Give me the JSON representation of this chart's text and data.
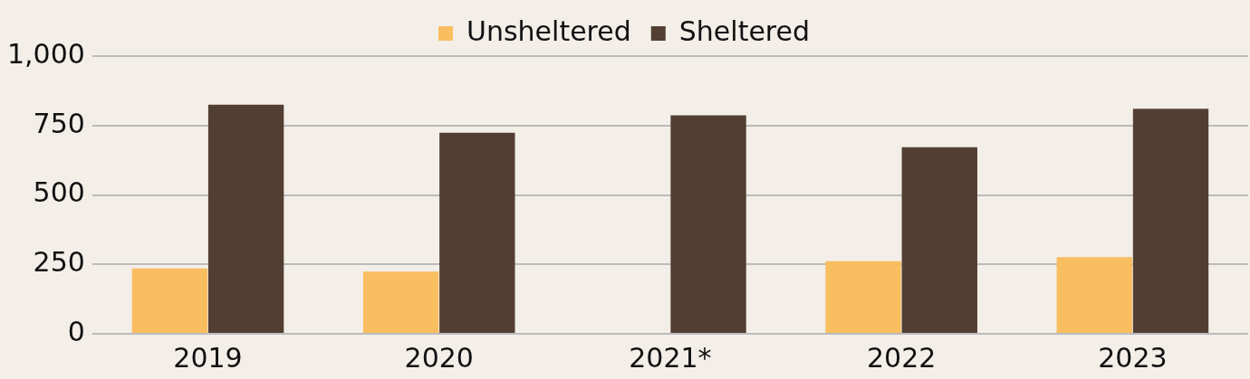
{
  "chart_data": {
    "type": "bar",
    "categories": [
      "2019",
      "2020",
      "2021*",
      "2022",
      "2023"
    ],
    "series": [
      {
        "name": "Unsheltered",
        "color": "#f9be60",
        "values": [
          235,
          224,
          null,
          261,
          276
        ]
      },
      {
        "name": "Sheltered",
        "color": "#523f32",
        "values": [
          825,
          724,
          787,
          672,
          810
        ]
      }
    ],
    "ylim": [
      0,
      1000
    ],
    "yticks": [
      0,
      250,
      500,
      750,
      {
        "value": 1000,
        "label": "1,000"
      }
    ],
    "grid": "y",
    "legend": "top"
  }
}
